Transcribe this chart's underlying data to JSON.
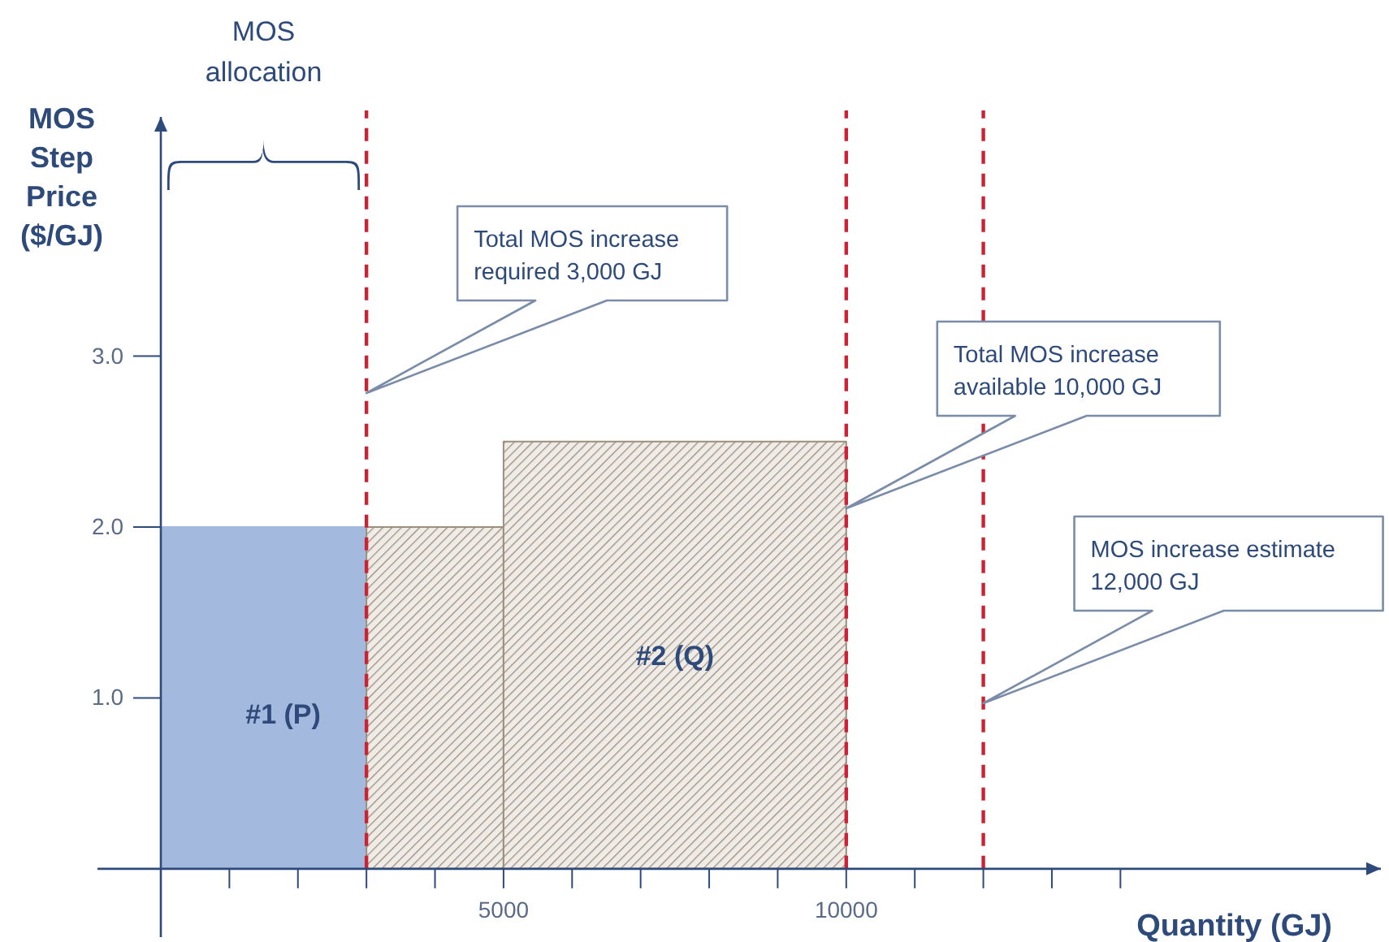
{
  "chart_data": {
    "type": "area",
    "ylabel": "MOS Step Price ($/GJ)",
    "xlabel": "Quantity (GJ)",
    "series": [
      {
        "type": "area",
        "color": "#a3b9de",
        "x": [
          0,
          3000
        ],
        "values": [
          2,
          2
        ]
      },
      {
        "type": "area",
        "color": "#9c8f80",
        "x": [
          3000,
          5000
        ],
        "values": [
          2,
          2
        ]
      },
      {
        "type": "area",
        "color": "#9c8f80",
        "x": [
          5000,
          10000
        ],
        "values": [
          2.5,
          2.5
        ]
      }
    ],
    "xlim": [
      0,
      17800
    ],
    "xticks": [
      {
        "value": 1000,
        "label": null
      },
      {
        "value": 2000,
        "label": null
      },
      {
        "value": 3000,
        "label": null
      },
      {
        "value": 4000,
        "label": null
      },
      5000,
      {
        "value": 6000,
        "label": null
      },
      {
        "value": 7000,
        "label": null
      },
      {
        "value": 8000,
        "label": null
      },
      {
        "value": 9000,
        "label": null
      },
      10000,
      {
        "value": 11000,
        "label": null
      },
      {
        "value": 12000,
        "label": null
      },
      {
        "value": 13000,
        "label": null
      },
      {
        "value": 14000,
        "label": null
      }
    ],
    "ylim": [
      -0.4,
      4.4
    ],
    "yticks": [
      {
        "value": 1,
        "label": "1.0"
      },
      {
        "value": 2,
        "label": "2.0"
      },
      {
        "value": 3,
        "label": "3.0"
      }
    ],
    "ref_lines": [
      {
        "axis": "x",
        "value": 3000,
        "color": "#cc2233",
        "line_style": "dashed"
      },
      {
        "axis": "x",
        "value": 10000,
        "color": "#cc2233",
        "line_style": "dashed"
      },
      {
        "axis": "x",
        "value": 12000,
        "color": "#cc2233",
        "line_style": "dashed"
      }
    ],
    "annotations": [
      "MOS allocation",
      "#1 (P)",
      "#2 (Q)",
      "Total MOS increase required 3,000 GJ",
      "Total MOS increase available 10,000 GJ",
      "MOS increase estimate 12,000 GJ"
    ],
    "grid": false
  }
}
